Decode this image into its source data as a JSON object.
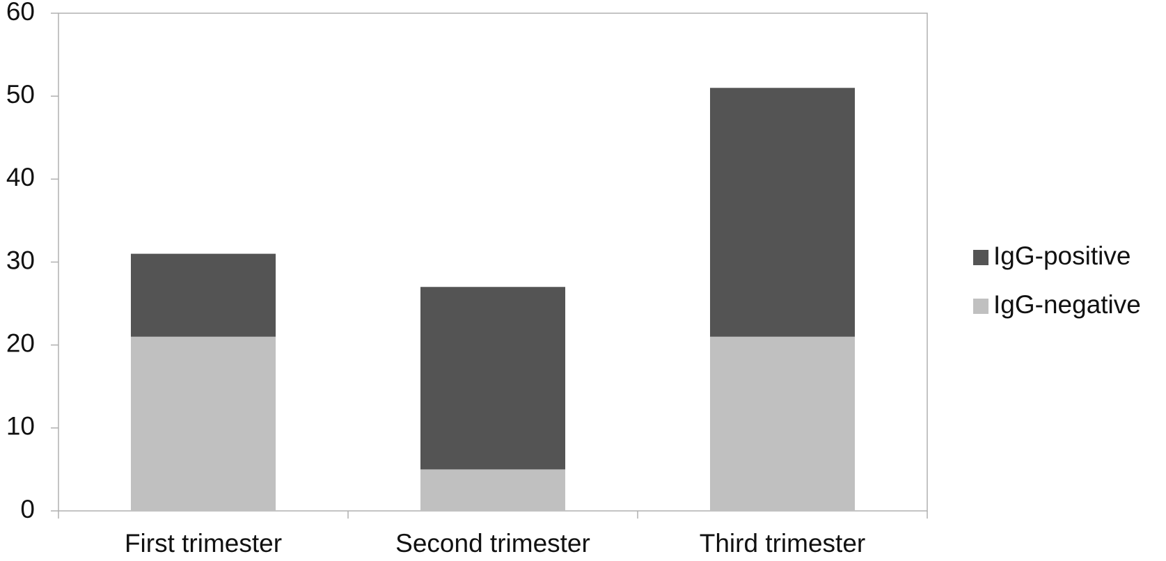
{
  "chart_data": {
    "type": "stacked_bar",
    "categories": [
      "First trimester",
      "Second trimester",
      "Third trimester"
    ],
    "series": [
      {
        "name": "IgG-positive",
        "color": "#545454",
        "values": [
          10,
          22,
          30
        ]
      },
      {
        "name": "IgG-negative",
        "color": "#c0c0c0",
        "values": [
          21,
          5,
          21
        ]
      }
    ],
    "ylim": [
      0,
      60
    ],
    "yticks": [
      0,
      10,
      20,
      30,
      40,
      50,
      60
    ],
    "legend": "right"
  }
}
